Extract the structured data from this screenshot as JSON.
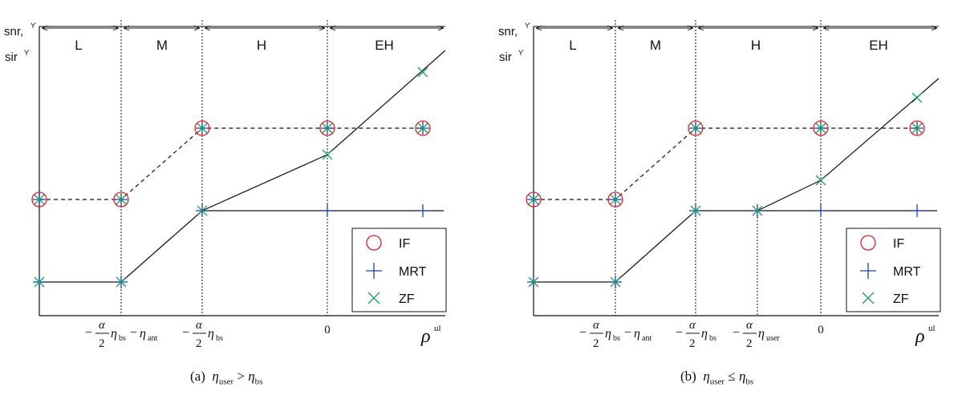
{
  "panels": [
    {
      "id": "a",
      "y_label_line1": "snr",
      "y_label_line2": "sir",
      "y_label_sup": "ϒ",
      "x_label": "ρ",
      "x_label_sup": "ul",
      "regions": [
        "L",
        "M",
        "H",
        "EH"
      ],
      "ticks": [
        {
          "main": "η",
          "sub": "bs",
          "extra_main": "η",
          "extra_sub": "ant"
        },
        {
          "main": "η",
          "sub": "bs"
        },
        {
          "zero": "0"
        }
      ],
      "tick_prefix": "−",
      "frac_num": "α",
      "frac_den": "2",
      "legend": [
        {
          "label": "IF",
          "marker": "circle",
          "color": "#e0202a"
        },
        {
          "label": "MRT",
          "marker": "plus",
          "color": "#1f3fb0"
        },
        {
          "label": "ZF",
          "marker": "cross",
          "color": "#17a35a"
        }
      ],
      "caption_prefix": "(a)",
      "caption_lhs": "η",
      "caption_lhs_sub": "user",
      "caption_op": ">",
      "caption_rhs": "η",
      "caption_rhs_sub": "bs"
    },
    {
      "id": "b",
      "y_label_line1": "snr",
      "y_label_line2": "sir",
      "y_label_sup": "ϒ",
      "x_label": "ρ",
      "x_label_sup": "ul",
      "regions": [
        "L",
        "M",
        "H",
        "EH"
      ],
      "ticks": [
        {
          "main": "η",
          "sub": "bs",
          "extra_main": "η",
          "extra_sub": "ant"
        },
        {
          "main": "η",
          "sub": "bs"
        },
        {
          "main": "η",
          "sub": "user"
        },
        {
          "zero": "0"
        }
      ],
      "tick_prefix": "−",
      "frac_num": "α",
      "frac_den": "2",
      "legend": [
        {
          "label": "IF",
          "marker": "circle",
          "color": "#e0202a"
        },
        {
          "label": "MRT",
          "marker": "plus",
          "color": "#1f3fb0"
        },
        {
          "label": "ZF",
          "marker": "cross",
          "color": "#17a35a"
        }
      ],
      "caption_prefix": "(b)",
      "caption_lhs": "η",
      "caption_lhs_sub": "user",
      "caption_op": "≤",
      "caption_rhs": "η",
      "caption_rhs_sub": "bs"
    }
  ]
}
